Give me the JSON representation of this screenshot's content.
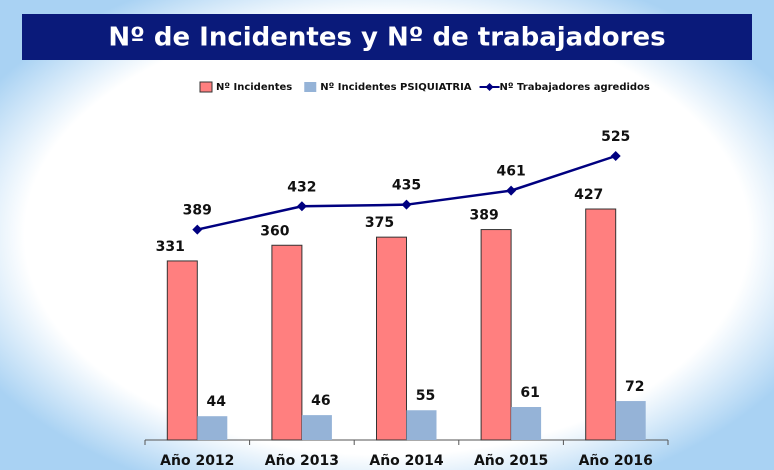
{
  "chart_data": {
    "type": "bar_line",
    "title": "Nº de Incidentes y Nº de trabajadores",
    "categories": [
      "Año 2012",
      "Año 2013",
      "Año 2014",
      "Año 2015",
      "Año 2016"
    ],
    "series": [
      {
        "name": "Nº Incidentes",
        "type": "bar",
        "color": "#ff7f7f",
        "values": [
          331,
          360,
          375,
          389,
          427
        ]
      },
      {
        "name": "Nº Incidentes PSIQUIATRIA",
        "type": "bar",
        "color": "#95b3d7",
        "values": [
          44,
          46,
          55,
          61,
          72
        ]
      },
      {
        "name": "Nº Trabajadores agredidos",
        "type": "line",
        "color": "#000080",
        "values": [
          389,
          432,
          435,
          461,
          525
        ]
      }
    ],
    "legend": "top"
  }
}
